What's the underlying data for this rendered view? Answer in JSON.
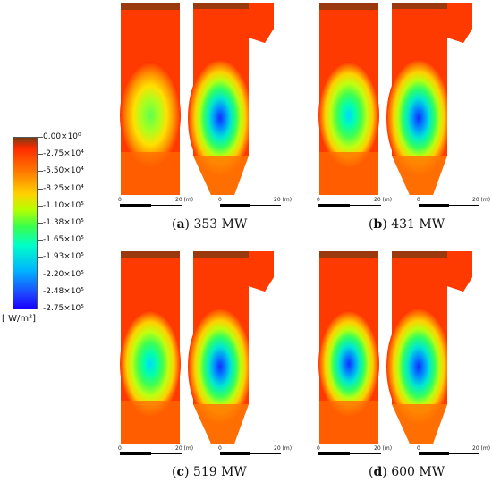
{
  "colorbar": {
    "labels": [
      "0.00×10⁰",
      "-2.75×10⁴",
      "-5.50×10⁴",
      "-8.25×10⁴",
      "-1.10×10⁵",
      "-1.38×10⁵",
      "-1.65×10⁵",
      "-1.93×10⁵",
      "-2.20×10⁵",
      "-2.48×10⁵",
      "-2.75×10⁵"
    ],
    "unit": "[ W/m²]"
  },
  "panels": [
    {
      "letter": "a",
      "label": "353 MW"
    },
    {
      "letter": "b",
      "label": "431 MW"
    },
    {
      "letter": "c",
      "label": "519 MW"
    },
    {
      "letter": "d",
      "label": "600 MW"
    }
  ],
  "scale": {
    "zero": "0",
    "end": "20 (m)"
  }
}
